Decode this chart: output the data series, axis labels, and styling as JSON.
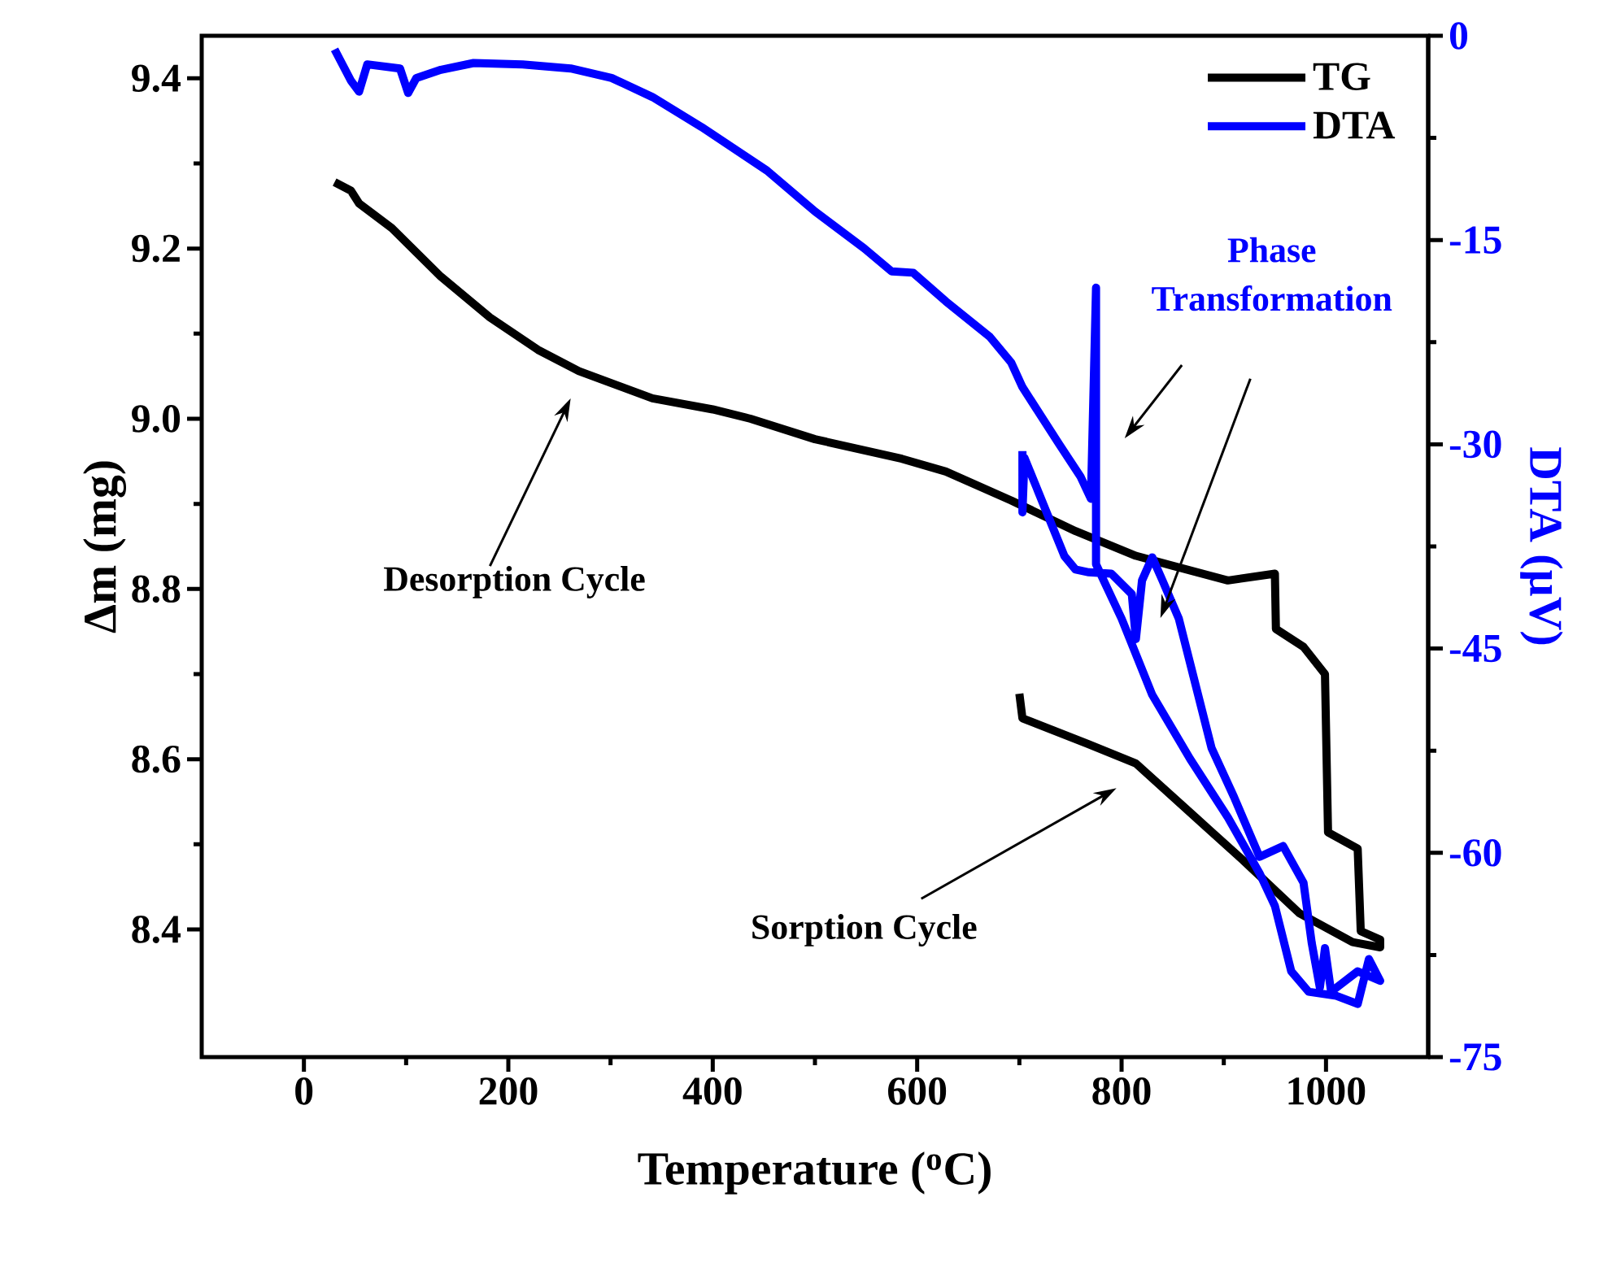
{
  "chart_data": {
    "type": "line",
    "xlabel": "Temperature ($^{o}$C)",
    "ylabel": "Δm (mg)",
    "y2label": "DTA (µV)",
    "xlim": [
      -100,
      1100
    ],
    "xticks": [
      0,
      200,
      400,
      600,
      800,
      1000
    ],
    "ylim": [
      8.25,
      9.45
    ],
    "yticks": [
      8.4,
      8.6,
      8.8,
      {
        "value": 9.0,
        "label": "9.0"
      },
      9.2,
      9.4
    ],
    "y2lim": [
      -75,
      0
    ],
    "y2ticks": [
      -75,
      -60,
      -45,
      -30,
      -15,
      0
    ],
    "legend": "top right",
    "annotations": [
      "Desorption Cycle",
      "Sorption Cycle",
      "Phase Transformation"
    ],
    "series": [
      {
        "name": "TG",
        "color": "#000000",
        "x": [
          30,
          46,
          54,
          86,
          134,
          182,
          229,
          269,
          341,
          400,
          437,
          500,
          585,
          628,
          692,
          755,
          814,
          851,
          904,
          950,
          951,
          978,
          999,
          1002,
          1031,
          1034,
          1053,
          1053,
          1026,
          974,
          920,
          872,
          814,
          767,
          703,
          700
        ],
        "values": [
          9.278,
          9.268,
          9.253,
          9.224,
          9.167,
          9.119,
          9.081,
          9.056,
          9.024,
          9.011,
          9.0,
          8.976,
          8.953,
          8.938,
          8.904,
          8.868,
          8.839,
          8.827,
          8.81,
          8.818,
          8.753,
          8.732,
          8.7,
          8.514,
          8.495,
          8.398,
          8.388,
          8.379,
          8.385,
          8.419,
          8.48,
          8.532,
          8.595,
          8.618,
          8.648,
          8.677
        ]
      },
      {
        "name": "DTA",
        "color": "#0000ff",
        "axis": "y2",
        "x": [
          30,
          46,
          54,
          62,
          94,
          102,
          110,
          134,
          166,
          214,
          261,
          301,
          341,
          389,
          453,
          500,
          548,
          575,
          596,
          628,
          671,
          692,
          703,
          739,
          760,
          770,
          775,
          775,
          800,
          830,
          867,
          904,
          935,
          950,
          966,
          983,
          1010,
          1031,
          1042,
          1053,
          1031,
          1005,
          999,
          994,
          986,
          978,
          958,
          935,
          910,
          888,
          856,
          840,
          830,
          820,
          814,
          810,
          790,
          768,
          755,
          744,
          705,
          703,
          703
        ],
        "values": [
          -1.0,
          -3.3,
          -4.1,
          -2.1,
          -2.4,
          -4.2,
          -3.1,
          -2.5,
          -2.0,
          -2.1,
          -2.4,
          -3.1,
          -4.5,
          -6.7,
          -9.9,
          -12.9,
          -15.6,
          -17.3,
          -17.4,
          -19.5,
          -22.1,
          -24.0,
          -25.8,
          -30.0,
          -32.4,
          -34.0,
          -18.5,
          -38.8,
          -42.8,
          -48.4,
          -53.1,
          -57.4,
          -61.5,
          -63.9,
          -68.7,
          -70.2,
          -70.5,
          -71.1,
          -67.8,
          -69.4,
          -68.7,
          -70.2,
          -67.0,
          -69.9,
          -66.6,
          -62.2,
          -59.5,
          -60.3,
          -55.9,
          -52.3,
          -42.8,
          -40.0,
          -38.3,
          -40.0,
          -44.3,
          -41.0,
          -39.5,
          -39.4,
          -39.2,
          -38.2,
          -31.0,
          -35.0,
          -30.5
        ]
      }
    ]
  }
}
